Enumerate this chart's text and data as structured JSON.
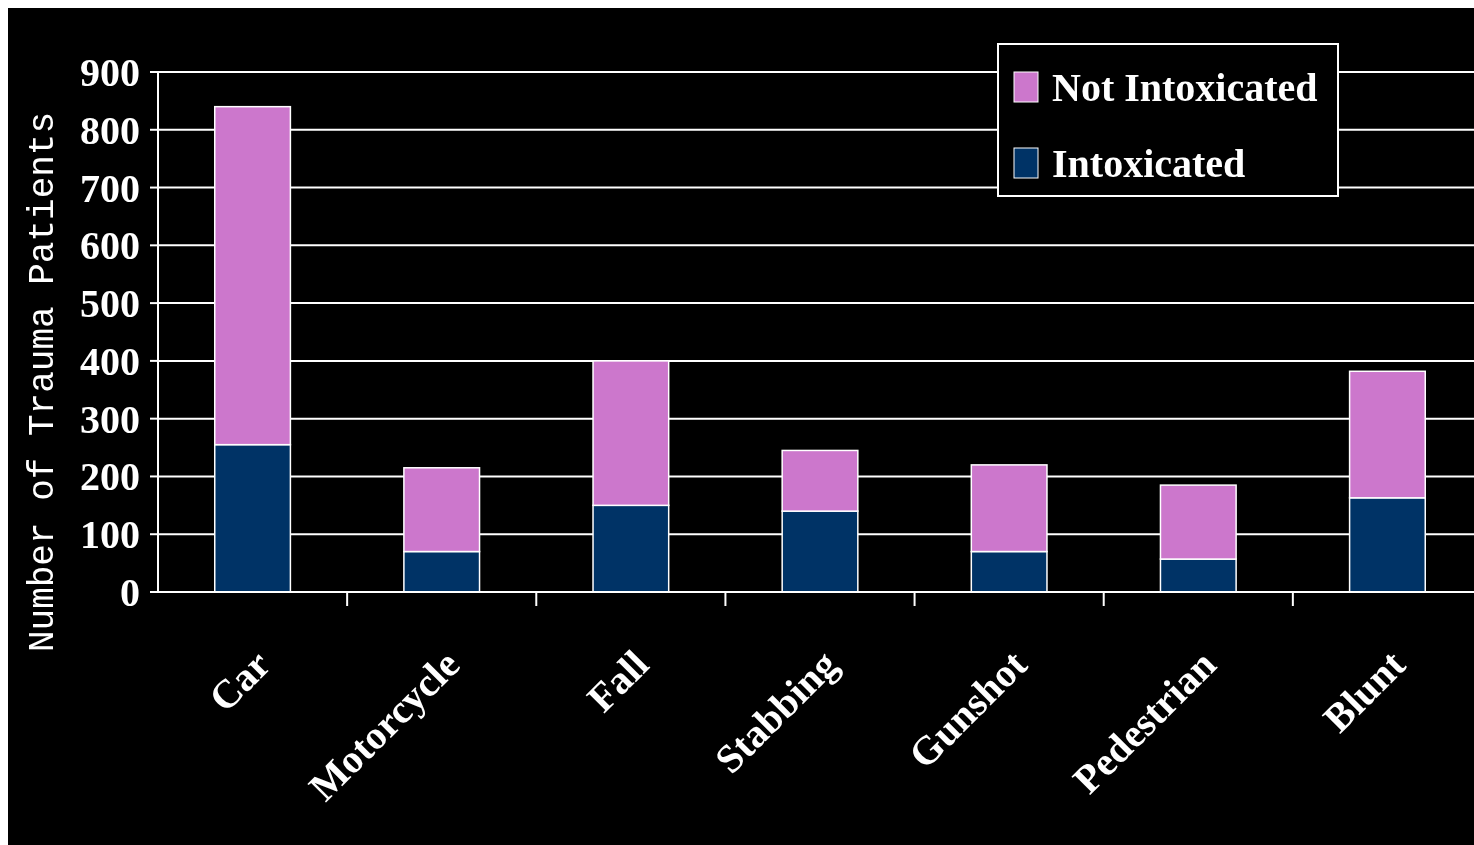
{
  "chart_data": {
    "type": "bar",
    "stacked": true,
    "ylabel": "Number of Trauma Patients",
    "categories": [
      "Car",
      "Motorcycle",
      "Fall",
      "Stabbing",
      "Gunshot",
      "Pedestrian",
      "Blunt"
    ],
    "series": [
      {
        "name": "Intoxicated",
        "color": "#003366",
        "values": [
          255,
          70,
          150,
          140,
          70,
          57,
          163
        ]
      },
      {
        "name": "Not Intoxicated",
        "color": "#cc77cc",
        "values": [
          585,
          145,
          250,
          105,
          150,
          128,
          219
        ]
      }
    ],
    "ylim": [
      0,
      900
    ],
    "yticks": [
      0,
      100,
      200,
      300,
      400,
      500,
      600,
      700,
      800,
      900
    ],
    "grid": "y",
    "legend": "top right"
  }
}
